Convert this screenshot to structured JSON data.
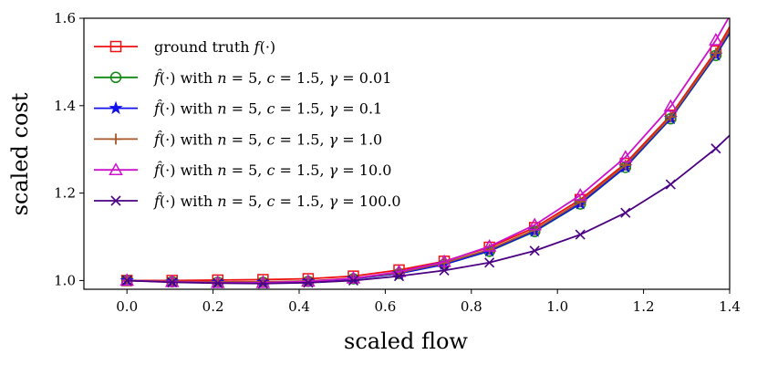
{
  "chart_data": {
    "type": "line",
    "title": "",
    "xlabel": "scaled flow",
    "ylabel": "scaled cost",
    "xlim": [
      -0.1,
      1.4
    ],
    "ylim": [
      0.98,
      1.6
    ],
    "xticks": [
      0.0,
      0.2,
      0.4,
      0.6,
      0.8,
      1.0,
      1.2,
      1.4
    ],
    "xtick_labels": [
      "0.0",
      "0.2",
      "0.4",
      "0.6",
      "0.8",
      "1.0",
      "1.2",
      "1.4"
    ],
    "yticks": [
      1.0,
      1.2,
      1.4,
      1.6
    ],
    "ytick_labels": [
      "1.0",
      "1.2",
      "1.4",
      "1.6"
    ],
    "legend_position": "top-left",
    "x": [
      0.0,
      0.105,
      0.211,
      0.316,
      0.421,
      0.526,
      0.632,
      0.737,
      0.842,
      0.947,
      1.053,
      1.158,
      1.263,
      1.368
    ],
    "series": [
      {
        "name": "ground truth f(·)",
        "legend_parts": [
          "ground truth ",
          "f",
          "(·)"
        ],
        "color": "#ee1111",
        "marker": "square",
        "values": [
          1.0,
          1.0,
          1.001,
          1.002,
          1.004,
          1.01,
          1.024,
          1.044,
          1.076,
          1.121,
          1.185,
          1.268,
          1.378,
          1.525
        ],
        "extend_to": [
          1.4,
          1.58
        ]
      },
      {
        "name": "f̂(·) with n = 5, c = 1.5, γ = 0.01",
        "legend_parts": [
          "f̂",
          "(·) with ",
          "n",
          " = 5, ",
          "c",
          " = 1.5, ",
          "γ",
          " = 0.01"
        ],
        "color": "#118811",
        "marker": "circle",
        "values": [
          1.0,
          0.997,
          0.996,
          0.996,
          0.998,
          1.004,
          1.016,
          1.037,
          1.067,
          1.112,
          1.175,
          1.259,
          1.37,
          1.515
        ],
        "extend_to": [
          1.4,
          1.565
        ]
      },
      {
        "name": "f̂(·) with n = 5, c = 1.5, γ = 0.1",
        "legend_parts": [
          "f̂",
          "(·) with ",
          "n",
          " = 5, ",
          "c",
          " = 1.5, ",
          "γ",
          " = 0.1"
        ],
        "color": "#1111ee",
        "marker": "star",
        "values": [
          1.0,
          0.997,
          0.996,
          0.996,
          0.998,
          1.004,
          1.016,
          1.037,
          1.068,
          1.113,
          1.176,
          1.26,
          1.371,
          1.516
        ],
        "extend_to": [
          1.4,
          1.567
        ]
      },
      {
        "name": "f̂(·) with n = 5, c = 1.5, γ = 1.0",
        "legend_parts": [
          "f̂",
          "(·) with ",
          "n",
          " = 5, ",
          "c",
          " = 1.5, ",
          "γ",
          " = 1.0"
        ],
        "color": "#a65628",
        "marker": "plus",
        "values": [
          1.0,
          0.998,
          0.997,
          0.997,
          0.999,
          1.005,
          1.018,
          1.04,
          1.071,
          1.116,
          1.18,
          1.264,
          1.374,
          1.52
        ],
        "extend_to": [
          1.4,
          1.572
        ]
      },
      {
        "name": "f̂(·) with n = 5, c = 1.5, γ = 10.0",
        "legend_parts": [
          "f̂",
          "(·) with ",
          "n",
          " = 5, ",
          "c",
          " = 1.5, ",
          "γ",
          " = 10.0"
        ],
        "color": "#cc11cc",
        "marker": "triangle",
        "values": [
          1.0,
          0.997,
          0.995,
          0.995,
          0.998,
          1.005,
          1.02,
          1.043,
          1.078,
          1.127,
          1.195,
          1.282,
          1.398,
          1.55
        ],
        "extend_to": [
          1.4,
          1.605
        ]
      },
      {
        "name": "f̂(·) with n = 5, c = 1.5, γ = 100.0",
        "legend_parts": [
          "f̂",
          "(·) with ",
          "n",
          " = 5, ",
          "c",
          " = 1.5, ",
          "γ",
          " = 100.0"
        ],
        "color": "#4b0082",
        "marker": "x",
        "values": [
          1.0,
          0.996,
          0.994,
          0.993,
          0.995,
          1.0,
          1.01,
          1.023,
          1.041,
          1.068,
          1.105,
          1.155,
          1.22,
          1.302
        ],
        "extend_to": [
          1.4,
          1.332
        ]
      }
    ]
  }
}
